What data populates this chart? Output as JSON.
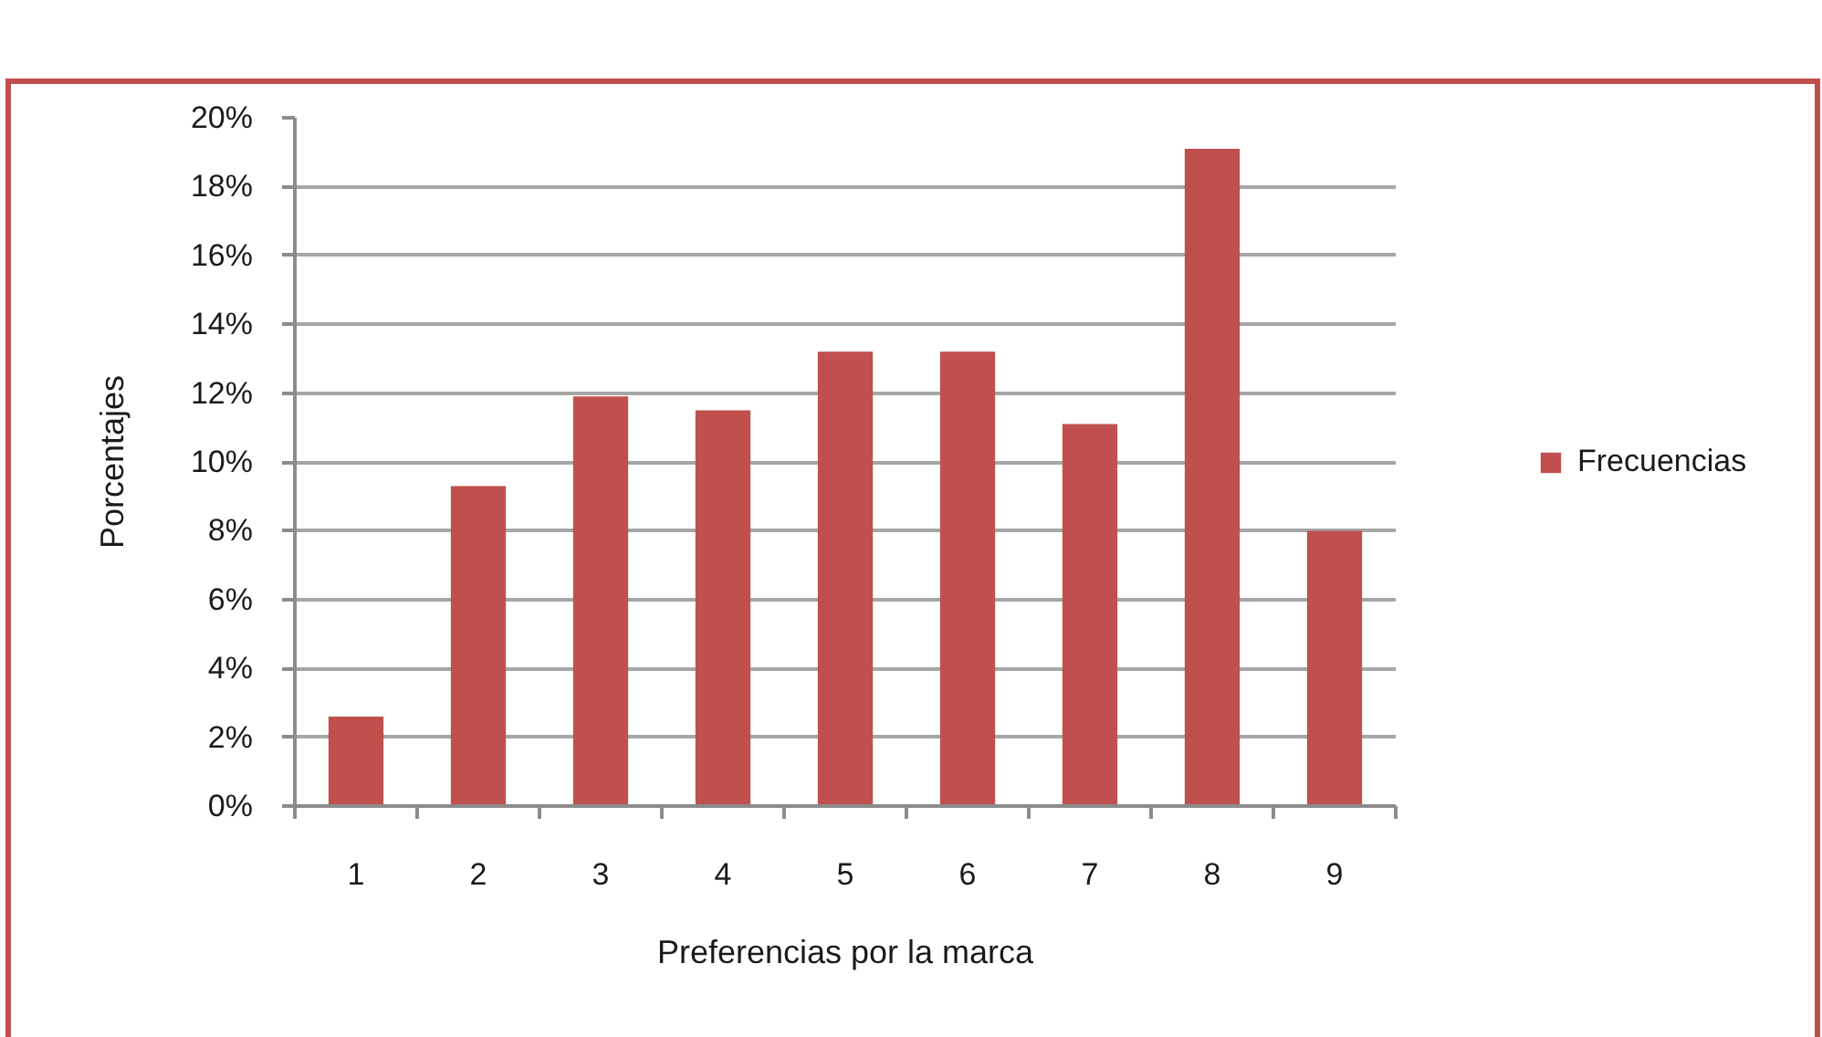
{
  "chart_data": {
    "type": "bar",
    "xlabel": "Preferencias por la marca",
    "ylabel": "Porcentajes",
    "categories": [
      "1",
      "2",
      "3",
      "4",
      "5",
      "6",
      "7",
      "8",
      "9"
    ],
    "series": [
      {
        "name": "Frecuencias",
        "color": "#c0504d",
        "values": [
          2.6,
          9.3,
          11.9,
          11.5,
          13.2,
          13.2,
          11.1,
          19.1,
          8.0
        ]
      }
    ],
    "ylim": [
      0,
      20
    ],
    "yticks": [
      {
        "value": 0,
        "label": "0%"
      },
      {
        "value": 2,
        "label": "2%"
      },
      {
        "value": 4,
        "label": "4%"
      },
      {
        "value": 6,
        "label": "6%"
      },
      {
        "value": 8,
        "label": "8%"
      },
      {
        "value": 10,
        "label": "10%"
      },
      {
        "value": 12,
        "label": "12%"
      },
      {
        "value": 14,
        "label": "14%"
      },
      {
        "value": 16,
        "label": "16%"
      },
      {
        "value": 18,
        "label": "18%"
      },
      {
        "value": 20,
        "label": "20%"
      }
    ],
    "grid": "y",
    "legend": "right"
  }
}
